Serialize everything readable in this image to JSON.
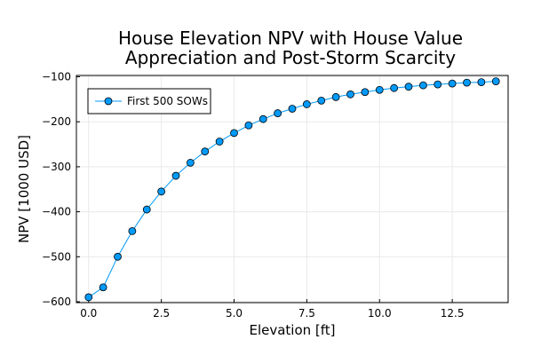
{
  "chart_data": {
    "type": "line",
    "title": "House Elevation NPV with House Value\nAppreciation and Post-Storm Scarcity",
    "xlabel": "Elevation [ft]",
    "ylabel": "NPV [1000 USD]",
    "xlim": [
      -0.42,
      14.42
    ],
    "ylim": [
      -602,
      -97
    ],
    "xticks": [
      0.0,
      2.5,
      5.0,
      7.5,
      10.0,
      12.5
    ],
    "xtick_labels": [
      "0.0",
      "2.5",
      "5.0",
      "7.5",
      "10.0",
      "12.5"
    ],
    "yticks": [
      -600,
      -500,
      -400,
      -300,
      -200,
      -100
    ],
    "ytick_labels": [
      "−600",
      "−500",
      "−400",
      "−300",
      "−200",
      "−100"
    ],
    "grid": true,
    "legend_position": "top-left",
    "series": [
      {
        "name": "First 500 SOWs",
        "color": "#009af9",
        "marker": "circle",
        "x": [
          0.0,
          0.5,
          1.0,
          1.5,
          2.0,
          2.5,
          3.0,
          3.5,
          4.0,
          4.5,
          5.0,
          5.5,
          6.0,
          6.5,
          7.0,
          7.5,
          8.0,
          8.5,
          9.0,
          9.5,
          10.0,
          10.5,
          11.0,
          11.5,
          12.0,
          12.5,
          13.0,
          13.5,
          14.0
        ],
        "y": [
          -590,
          -568,
          -500,
          -443,
          -395,
          -355,
          -320,
          -291,
          -266,
          -244,
          -225,
          -208,
          -194,
          -181,
          -171,
          -161,
          -153,
          -145,
          -139,
          -134,
          -129,
          -125,
          -122,
          -119,
          -117,
          -115,
          -113,
          -112,
          -110
        ]
      }
    ]
  }
}
